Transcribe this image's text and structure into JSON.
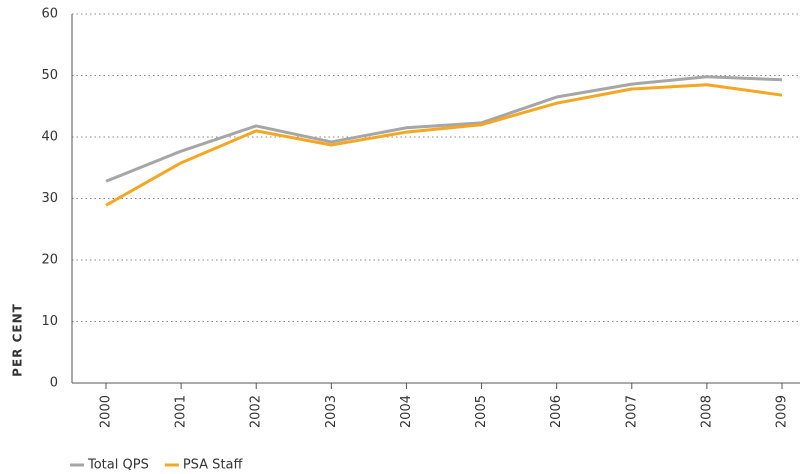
{
  "chart_data": {
    "type": "line",
    "y_label": "PER CENT",
    "categories": [
      "2000",
      "2001",
      "2002",
      "2003",
      "2004",
      "2005",
      "2006",
      "2007",
      "2008",
      "2009"
    ],
    "series": [
      {
        "name": "Total QPS",
        "color": "#a6a6a6",
        "values": [
          32.8,
          37.7,
          41.8,
          39.2,
          41.5,
          42.3,
          46.5,
          48.6,
          49.8,
          49.3
        ]
      },
      {
        "name": "PSA Staff",
        "color": "#f5a623",
        "values": [
          28.9,
          35.8,
          41.0,
          38.7,
          40.8,
          42.0,
          45.5,
          47.8,
          48.5,
          46.8
        ]
      }
    ],
    "ylim": [
      0,
      60
    ],
    "yticks": [
      0,
      10,
      20,
      30,
      40,
      50,
      60
    ],
    "grid": true
  }
}
